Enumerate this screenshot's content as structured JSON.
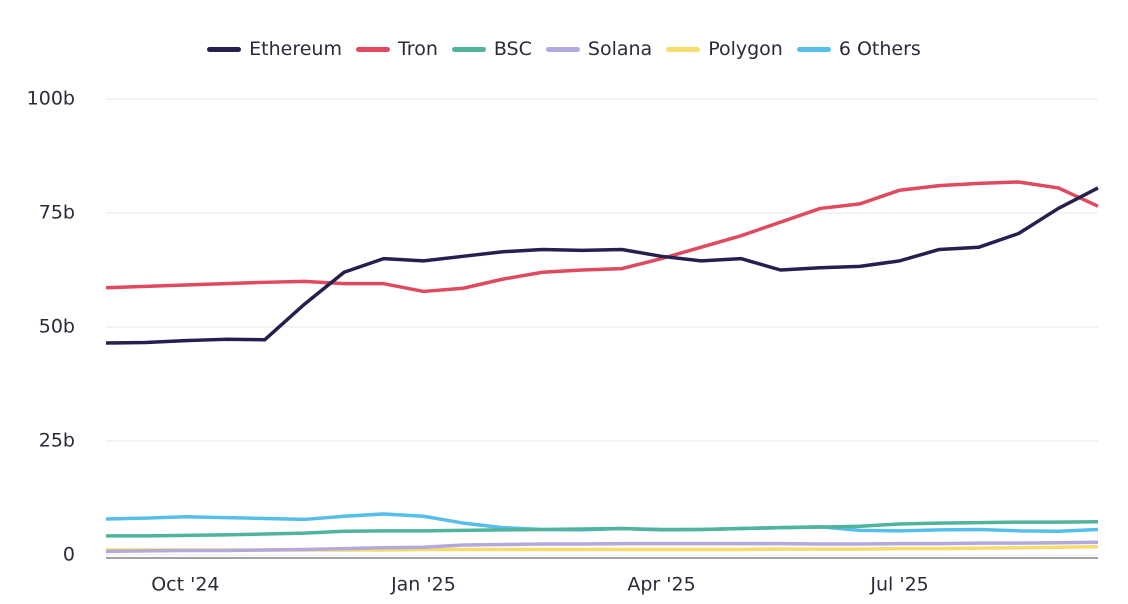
{
  "chart_data": {
    "type": "line",
    "categories": [
      null,
      null,
      "Oct '24",
      null,
      null,
      null,
      null,
      null,
      "Jan '25",
      null,
      null,
      null,
      null,
      null,
      "Apr '25",
      null,
      null,
      null,
      null,
      null,
      "Jul '25",
      null,
      null,
      null,
      null,
      null
    ],
    "series": [
      {
        "name": "Ethereum",
        "color": "#24204f",
        "values": [
          46.5,
          46.6,
          47,
          47.3,
          47.2,
          55,
          62,
          65,
          64.5,
          65.5,
          66.5,
          67,
          66.8,
          67,
          65.5,
          64.5,
          65,
          62.5,
          63,
          63.3,
          64.5,
          67,
          67.5,
          70.5,
          76,
          80.5
        ]
      },
      {
        "name": "Tron",
        "color": "#e04a5f",
        "values": [
          58.6,
          58.9,
          59.2,
          59.5,
          59.8,
          60,
          59.5,
          59.5,
          57.8,
          58.5,
          60.5,
          62,
          62.5,
          62.8,
          65,
          67.5,
          70,
          73,
          76,
          77,
          80,
          81,
          81.5,
          81.8,
          80.5,
          76.5
        ]
      },
      {
        "name": "BSC",
        "color": "#4fb39e",
        "values": [
          4.2,
          4.2,
          4.3,
          4.4,
          4.6,
          4.8,
          5.2,
          5.3,
          5.3,
          5.4,
          5.5,
          5.6,
          5.7,
          5.8,
          5.6,
          5.6,
          5.8,
          6,
          6.1,
          6.3,
          6.8,
          7,
          7.1,
          7.2,
          7.2,
          7.3
        ]
      },
      {
        "name": "Solana",
        "color": "#b3a9dd",
        "values": [
          0.8,
          0.9,
          1,
          1,
          1.1,
          1.2,
          1.4,
          1.6,
          1.7,
          2.2,
          2.3,
          2.4,
          2.4,
          2.5,
          2.5,
          2.5,
          2.5,
          2.5,
          2.4,
          2.4,
          2.5,
          2.5,
          2.6,
          2.6,
          2.7,
          2.8
        ]
      },
      {
        "name": "Polygon",
        "color": "#f6dc6a",
        "values": [
          1.1,
          1.1,
          1.1,
          1.1,
          1.1,
          1.1,
          1.1,
          1.1,
          1.2,
          1.2,
          1.2,
          1.2,
          1.2,
          1.2,
          1.2,
          1.2,
          1.2,
          1.3,
          1.3,
          1.3,
          1.4,
          1.4,
          1.5,
          1.6,
          1.7,
          1.8
        ]
      },
      {
        "name": "6 Others",
        "color": "#56bfe9",
        "values": [
          7.9,
          8.1,
          8.4,
          8.2,
          8,
          7.8,
          8.5,
          9,
          8.5,
          7,
          6,
          5.6,
          5.5,
          5.8,
          5.5,
          5.6,
          5.8,
          6,
          6.2,
          5.4,
          5.3,
          5.5,
          5.6,
          5.3,
          5.2,
          5.6
        ]
      }
    ],
    "ylim": [
      0,
      100
    ],
    "yticks": [
      {
        "value": 0,
        "label": "0"
      },
      {
        "value": 25,
        "label": "25b"
      },
      {
        "value": 50,
        "label": "50b"
      },
      {
        "value": 75,
        "label": "75b"
      },
      {
        "value": 100,
        "label": "100b"
      }
    ],
    "grid": true,
    "legend": "top"
  }
}
